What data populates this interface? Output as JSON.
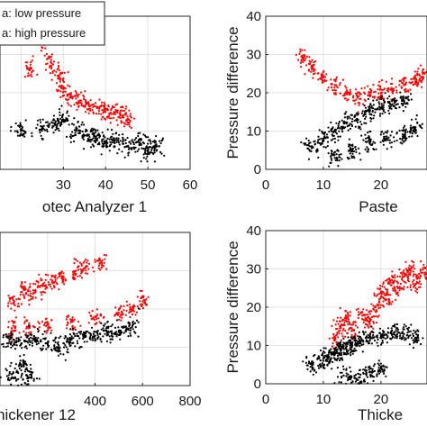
{
  "chart_data": [
    {
      "panel": "top-left",
      "type": "scatter",
      "xlabel": "otec Analyzer 1",
      "ylabel": "",
      "xlim": [
        15,
        60
      ],
      "ylim": [
        0,
        40
      ],
      "xticks": [
        30,
        40,
        50,
        60
      ],
      "yticks": [],
      "grid": true,
      "legend": {
        "placement": "top-left",
        "entries": [
          "a: low pressure",
          "a: high pressure"
        ]
      },
      "series": [
        {
          "color": "#ff0000",
          "approx_points": [
            [
              22,
              26
            ],
            [
              25,
              33
            ],
            [
              27,
              28
            ],
            [
              29,
              24
            ],
            [
              30,
              21
            ],
            [
              32,
              19
            ],
            [
              34,
              18
            ],
            [
              36,
              17
            ],
            [
              38,
              16
            ],
            [
              40,
              15
            ],
            [
              42,
              15
            ],
            [
              44,
              14
            ],
            [
              45,
              13
            ]
          ]
        },
        {
          "color": "#000000",
          "approx_points": [
            [
              20,
              10
            ],
            [
              25,
              11
            ],
            [
              28,
              12
            ],
            [
              30,
              13
            ],
            [
              33,
              10
            ],
            [
              36,
              9
            ],
            [
              38,
              8
            ],
            [
              40,
              7
            ],
            [
              42,
              7
            ],
            [
              45,
              6
            ],
            [
              48,
              7
            ],
            [
              50,
              5
            ],
            [
              52,
              6
            ]
          ]
        }
      ]
    },
    {
      "panel": "top-right",
      "type": "scatter",
      "xlabel": "Paste",
      "ylabel": "Pressure difference",
      "xlim": [
        0,
        28
      ],
      "ylim": [
        0,
        40
      ],
      "xticks": [
        0,
        10,
        20
      ],
      "yticks": [
        0,
        10,
        20,
        30,
        40
      ],
      "grid": true,
      "series": [
        {
          "color": "#ff0000",
          "approx_points": [
            [
              6.5,
              29
            ],
            [
              8,
              27
            ],
            [
              10,
              24
            ],
            [
              12,
              22
            ],
            [
              14,
              20
            ],
            [
              16,
              19
            ],
            [
              18,
              20
            ],
            [
              20,
              20
            ],
            [
              22,
              21
            ],
            [
              24,
              22
            ],
            [
              26,
              23
            ],
            [
              27,
              24
            ]
          ]
        },
        {
          "color": "#000000",
          "approx_points": [
            [
              8,
              6
            ],
            [
              10,
              8
            ],
            [
              12,
              10
            ],
            [
              14,
              12
            ],
            [
              16,
              13
            ],
            [
              18,
              15
            ],
            [
              20,
              16
            ],
            [
              22,
              17
            ],
            [
              24,
              18
            ],
            [
              12,
              3
            ],
            [
              15,
              5
            ],
            [
              18,
              7
            ],
            [
              21,
              8
            ],
            [
              24,
              9
            ],
            [
              26,
              11
            ]
          ]
        }
      ]
    },
    {
      "panel": "bottom-left",
      "type": "scatter",
      "xlabel": "hickener 12",
      "ylabel": "",
      "xlim": [
        0,
        800
      ],
      "ylim": [
        0,
        40
      ],
      "xticks": [
        400,
        600,
        800
      ],
      "yticks": [],
      "grid": true,
      "series": [
        {
          "color": "#ff0000",
          "approx_points": [
            [
              60,
              22
            ],
            [
              100,
              25
            ],
            [
              140,
              24
            ],
            [
              180,
              26
            ],
            [
              220,
              27
            ],
            [
              260,
              28
            ],
            [
              320,
              30
            ],
            [
              360,
              31
            ],
            [
              420,
              32
            ],
            [
              50,
              15
            ],
            [
              120,
              15
            ],
            [
              200,
              16
            ],
            [
              300,
              17
            ],
            [
              400,
              18
            ],
            [
              500,
              19
            ],
            [
              550,
              20
            ],
            [
              600,
              22
            ]
          ]
        },
        {
          "color": "#000000",
          "approx_points": [
            [
              40,
              12
            ],
            [
              90,
              11
            ],
            [
              150,
              12
            ],
            [
              200,
              11
            ],
            [
              250,
              10
            ],
            [
              300,
              12
            ],
            [
              350,
              13
            ],
            [
              400,
              13
            ],
            [
              450,
              14
            ],
            [
              500,
              14
            ],
            [
              550,
              15
            ],
            [
              50,
              3
            ],
            [
              100,
              5
            ],
            [
              120,
              2
            ]
          ]
        }
      ]
    },
    {
      "panel": "bottom-right",
      "type": "scatter",
      "xlabel": "Thicke",
      "ylabel": "Pressure difference",
      "xlim": [
        0,
        28
      ],
      "ylim": [
        0,
        40
      ],
      "xticks": [
        0,
        10,
        20
      ],
      "yticks": [
        0,
        10,
        20,
        30,
        40
      ],
      "grid": true,
      "series": [
        {
          "color": "#ff0000",
          "approx_points": [
            [
              12,
              12
            ],
            [
              13,
              15
            ],
            [
              14,
              17
            ],
            [
              15,
              14
            ],
            [
              17,
              18
            ],
            [
              18,
              16
            ],
            [
              19,
              20
            ],
            [
              20,
              24
            ],
            [
              21,
              22
            ],
            [
              22,
              27
            ],
            [
              23,
              25
            ],
            [
              24,
              28
            ],
            [
              25,
              30
            ],
            [
              26,
              26
            ],
            [
              27,
              29
            ]
          ]
        },
        {
          "color": "#000000",
          "approx_points": [
            [
              8,
              5
            ],
            [
              10,
              6
            ],
            [
              11,
              7
            ],
            [
              12,
              8
            ],
            [
              13,
              9
            ],
            [
              14,
              9
            ],
            [
              15,
              10
            ],
            [
              16,
              11
            ],
            [
              18,
              12
            ],
            [
              20,
              12
            ],
            [
              22,
              13
            ],
            [
              24,
              13
            ],
            [
              26,
              12
            ],
            [
              14,
              2
            ],
            [
              16,
              1
            ],
            [
              18,
              3
            ],
            [
              20,
              4
            ]
          ]
        }
      ]
    }
  ]
}
